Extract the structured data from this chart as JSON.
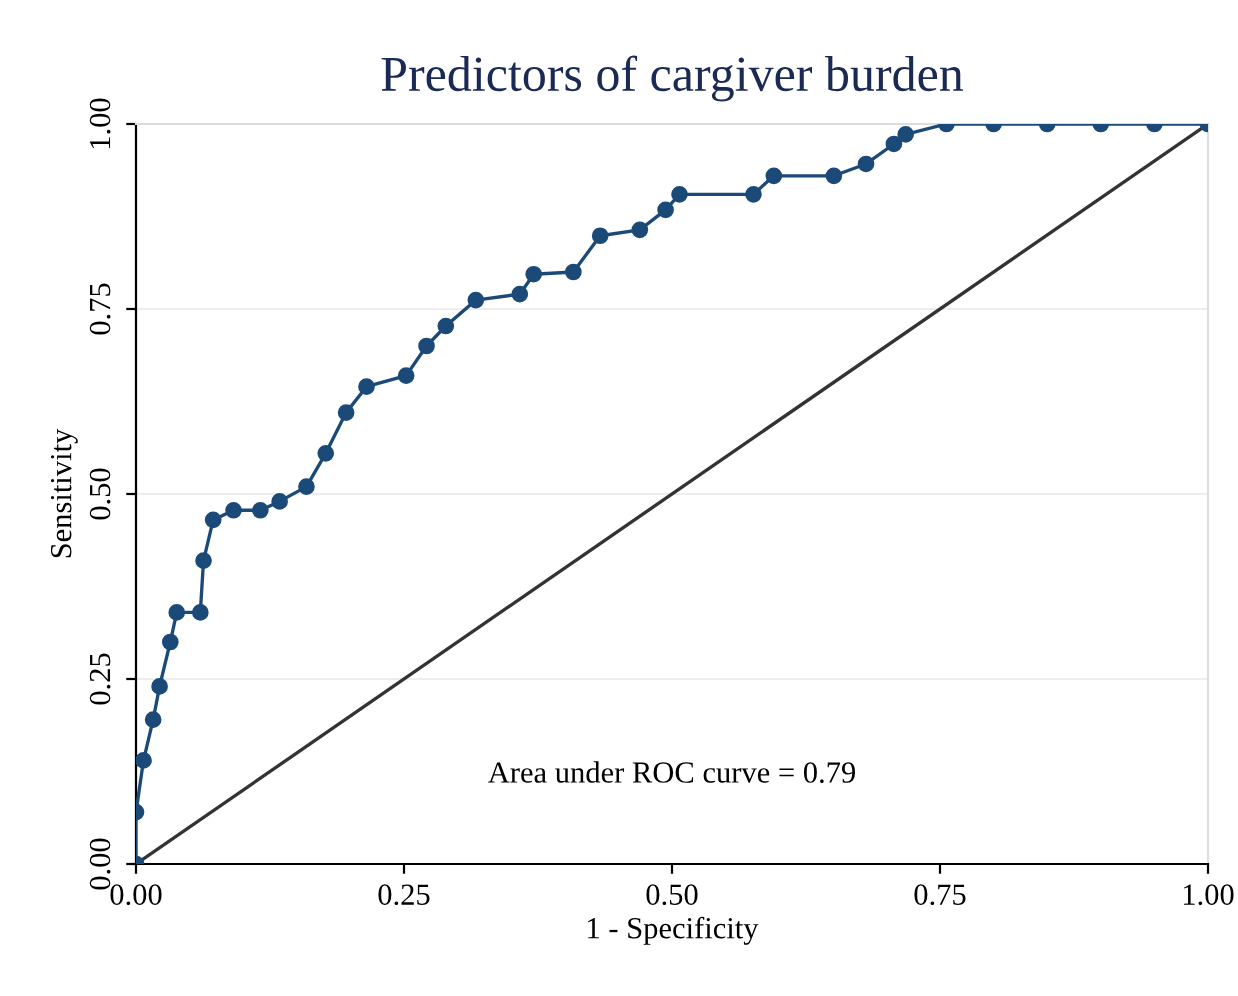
{
  "chart_data": {
    "type": "line",
    "title": "Predictors of cargiver burden",
    "xlabel": "1 - Specificity",
    "ylabel": "Sensitivity",
    "xlim": [
      0,
      1
    ],
    "ylim": [
      0,
      1
    ],
    "xticks": [
      {
        "value": 0,
        "label": "0.00"
      },
      {
        "value": 0.25,
        "label": "0.25"
      },
      {
        "value": 0.5,
        "label": "0.50"
      },
      {
        "value": 0.75,
        "label": "0.75"
      },
      {
        "value": 1,
        "label": "1.00"
      }
    ],
    "yticks": [
      {
        "value": 0,
        "label": "0.00"
      },
      {
        "value": 0.25,
        "label": "0.25"
      },
      {
        "value": 0.5,
        "label": "0.50"
      },
      {
        "value": 0.75,
        "label": "0.75"
      },
      {
        "value": 1,
        "label": "1.00"
      }
    ],
    "grid": "y",
    "legend": false,
    "annotations": [
      "Area under ROC curve = 0.79"
    ],
    "series": [
      {
        "color": "#1b4a78",
        "marker": "circle",
        "x": [
          0,
          0,
          0.007,
          0.016,
          0.022,
          0.032,
          0.038,
          0.06,
          0.063,
          0.072,
          0.091,
          0.116,
          0.134,
          0.159,
          0.177,
          0.196,
          0.215,
          0.252,
          0.271,
          0.289,
          0.317,
          0.358,
          0.371,
          0.408,
          0.433,
          0.47,
          0.494,
          0.507,
          0.576,
          0.595,
          0.651,
          0.681,
          0.707,
          0.718,
          0.756,
          0.8,
          0.85,
          0.9,
          0.95,
          1.0
        ],
        "values": [
          0,
          0.07,
          0.14,
          0.195,
          0.24,
          0.3,
          0.34,
          0.34,
          0.41,
          0.465,
          0.478,
          0.478,
          0.49,
          0.51,
          0.555,
          0.61,
          0.645,
          0.66,
          0.7,
          0.727,
          0.762,
          0.77,
          0.797,
          0.8,
          0.849,
          0.857,
          0.884,
          0.905,
          0.905,
          0.93,
          0.93,
          0.946,
          0.973,
          0.986,
          1,
          1,
          1,
          1,
          1,
          1
        ]
      },
      {
        "color": "#333333",
        "marker": "none",
        "x": [
          0,
          1
        ],
        "values": [
          0,
          1
        ]
      }
    ]
  }
}
